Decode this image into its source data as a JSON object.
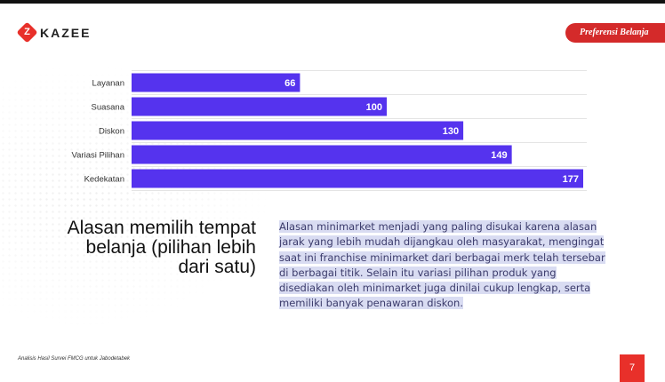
{
  "brand": {
    "name": "KAZEE"
  },
  "header": {
    "section_label": "Preferensi Belanja"
  },
  "chart_data": {
    "type": "bar",
    "orientation": "horizontal",
    "categories": [
      "Layanan",
      "Suasana",
      "Diskon",
      "Variasi Pilihan",
      "Kedekatan"
    ],
    "values": [
      66,
      100,
      130,
      149,
      177
    ],
    "data_labels": [
      "66",
      "100",
      "130",
      "149",
      "177"
    ],
    "bar_color": "#5533ee",
    "xlim": [
      0,
      177
    ],
    "grid": true
  },
  "heading": {
    "lines": [
      "Alasan memilih tempat",
      "belanja (pilihan lebih",
      "dari satu)"
    ]
  },
  "description": {
    "text": "Alasan minimarket menjadi yang paling disukai karena alasan jarak yang lebih mudah dijangkau oleh masyarakat, mengingat saat ini franchise minimarket dari berbagai merk telah tersebar di berbagai titik. Selain itu variasi pilihan produk yang disediakan oleh minimarket juga dinilai cukup lengkap, serta memiliki banyak penawaran diskon."
  },
  "footer": {
    "source_note": "Analisis Hasil Survei FMCG untuk Jabodetabek",
    "page_number": "7"
  },
  "colors": {
    "accent": "#e8302a",
    "bar": "#5533ee"
  }
}
